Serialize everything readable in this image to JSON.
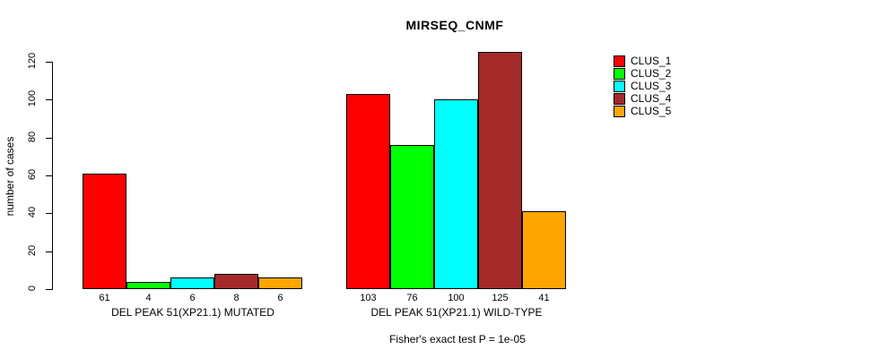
{
  "chart_data": {
    "type": "bar",
    "title": "MIRSEQ_CNMF",
    "ylabel": "number of cases",
    "footnote": "Fisher's exact test P = 1e-05",
    "ylim": [
      0,
      120
    ],
    "yticks": [
      0,
      20,
      40,
      60,
      80,
      100,
      120
    ],
    "grid": false,
    "legend_position": "right",
    "bar_value_labels_shown": true,
    "categories": [
      "DEL PEAK 51(XP21.1) MUTATED",
      "DEL PEAK 51(XP21.1) WILD-TYPE"
    ],
    "series": [
      {
        "name": "CLUS_1",
        "color": "#FF0000",
        "values": [
          61,
          103
        ]
      },
      {
        "name": "CLUS_2",
        "color": "#00FF00",
        "values": [
          4,
          76
        ]
      },
      {
        "name": "CLUS_3",
        "color": "#00FFFF",
        "values": [
          6,
          100
        ]
      },
      {
        "name": "CLUS_4",
        "color": "#A52A2A",
        "values": [
          8,
          125
        ]
      },
      {
        "name": "CLUS_5",
        "color": "#FFA500",
        "values": [
          6,
          41
        ]
      }
    ]
  }
}
